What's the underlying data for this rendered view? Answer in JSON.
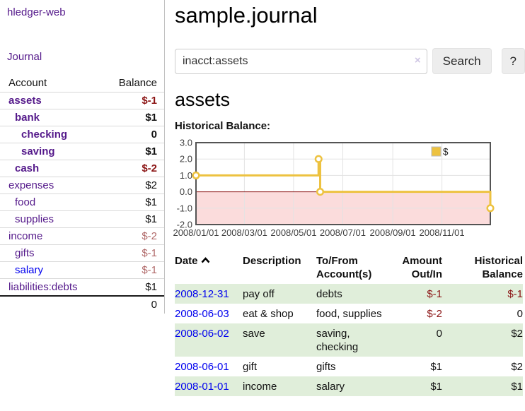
{
  "app": {
    "title": "hledger-web"
  },
  "colors": {
    "link_purple": "#551a8b",
    "link_blue": "#0000ee",
    "negative_strong": "#8b1515",
    "negative_soft": "#b06868",
    "row_stripe_green": "#e0eeda",
    "series_yellow": "#EDC240",
    "negative_region_pink": "#fbdcdc",
    "zero_line_red": "#8b1414",
    "chart_border_gray": "#545454"
  },
  "sidebar": {
    "nav_journal_label": "Journal",
    "accounts": {
      "header_account": "Account",
      "header_balance": "Balance",
      "rows": [
        {
          "name": "assets",
          "depth": 1,
          "balance": "$-1",
          "bold": true,
          "neg": "strong"
        },
        {
          "name": "bank",
          "depth": 2,
          "balance": "$1",
          "bold": true
        },
        {
          "name": "checking",
          "depth": 3,
          "balance": "0",
          "bold": true
        },
        {
          "name": "saving",
          "depth": 3,
          "balance": "$1",
          "bold": true
        },
        {
          "name": "cash",
          "depth": 2,
          "balance": "$-2",
          "bold": true,
          "neg": "strong"
        },
        {
          "name": "expenses",
          "depth": 1,
          "balance": "$2"
        },
        {
          "name": "food",
          "depth": 2,
          "balance": "$1"
        },
        {
          "name": "supplies",
          "depth": 2,
          "balance": "$1"
        },
        {
          "name": "income",
          "depth": 1,
          "balance": "$-2",
          "neg": "soft"
        },
        {
          "name": "gifts",
          "depth": 2,
          "balance": "$-1",
          "neg": "soft"
        },
        {
          "name": "salary",
          "depth": 2,
          "balance": "$-1",
          "neg": "soft",
          "blue": true
        },
        {
          "name": "liabilities:debts",
          "depth": 1,
          "balance": "$1"
        }
      ],
      "total": "0"
    }
  },
  "main": {
    "title": "sample.journal",
    "search": {
      "value": "inacct:assets",
      "clear_icon": "×",
      "button_label": "Search",
      "help_label": "?"
    },
    "account_heading": "assets"
  },
  "chart_data": {
    "type": "line",
    "step": true,
    "title": "Historical Balance:",
    "series": [
      {
        "name": "$",
        "color": "#EDC240",
        "points": [
          [
            "2008-01-01",
            1
          ],
          [
            "2008-06-01",
            2
          ],
          [
            "2008-06-03",
            0
          ],
          [
            "2008-12-31",
            -1
          ]
        ]
      }
    ],
    "xrange": [
      "2008-01-01",
      "2008-12-31"
    ],
    "ylim": [
      -2,
      3
    ],
    "yticks": [
      "3.0",
      "2.0",
      "1.0",
      "0.0",
      "-1.0",
      "-2.0"
    ],
    "xticks": [
      "2008/01/01",
      "2008/03/01",
      "2008/05/01",
      "2008/07/01",
      "2008/09/01",
      "2008/11/01"
    ],
    "legend": {
      "label": "$",
      "position": "top-right"
    },
    "grid": true
  },
  "register": {
    "headers": {
      "date": "Date",
      "description": "Description",
      "accounts": "To/From Account(s)",
      "amount": "Amount Out/In",
      "balance": "Historical Balance"
    },
    "sort": {
      "column": "Date",
      "direction": "ascending"
    },
    "rows": [
      {
        "date": "2008-12-31",
        "description": "pay off",
        "accounts": "debts",
        "amount": "$-1",
        "balance": "$-1"
      },
      {
        "date": "2008-06-03",
        "description": "eat & shop",
        "accounts": "food, supplies",
        "amount": "$-2",
        "balance": "0"
      },
      {
        "date": "2008-06-02",
        "description": "save",
        "accounts": "saving, checking",
        "amount": "0",
        "balance": "$2"
      },
      {
        "date": "2008-06-01",
        "description": "gift",
        "accounts": "gifts",
        "amount": "$1",
        "balance": "$2"
      },
      {
        "date": "2008-01-01",
        "description": "income",
        "accounts": "salary",
        "amount": "$1",
        "balance": "$1"
      }
    ]
  }
}
